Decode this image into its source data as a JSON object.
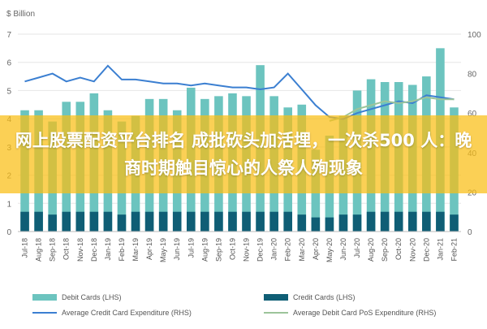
{
  "chart_data": {
    "type": "bar+line",
    "left_axis_unit": "$ Billion",
    "right_axis_ticks": [
      0,
      20,
      40,
      60,
      80,
      100
    ],
    "left_axis_ticks": [
      0,
      1,
      2,
      3,
      4,
      5,
      6,
      7
    ],
    "ylim_left": [
      0,
      7
    ],
    "ylim_right": [
      0,
      100
    ],
    "categories": [
      "Jul-18",
      "Aug-18",
      "Sep-18",
      "Oct-18",
      "Nov-18",
      "Dec-18",
      "Jan-19",
      "Feb-19",
      "Mar-19",
      "Apr-19",
      "May-19",
      "Jun-19",
      "Jul-19",
      "Aug-19",
      "Sep-19",
      "Oct-19",
      "Nov-19",
      "Dec-19",
      "Jan-20",
      "Feb-20",
      "Mar-20",
      "Apr-20",
      "May-20",
      "Jun-20",
      "Jul-20",
      "Aug-20",
      "Sep-20",
      "Oct-20",
      "Nov-20",
      "Dec-20",
      "Jan-21",
      "Feb-21"
    ],
    "series": [
      {
        "name": "Debit Cards (LHS)",
        "kind": "bar",
        "axis": "left",
        "color": "#6cc4bf",
        "values": [
          4.3,
          4.3,
          3.9,
          4.6,
          4.6,
          4.9,
          4.3,
          3.9,
          4.1,
          4.7,
          4.7,
          4.3,
          5.1,
          4.7,
          4.8,
          4.9,
          4.8,
          5.9,
          4.8,
          4.4,
          4.5,
          2.9,
          3.4,
          4.1,
          5.0,
          5.4,
          5.3,
          5.3,
          5.2,
          5.5,
          6.5,
          4.4
        ]
      },
      {
        "name": "Credit Cards (LHS)",
        "kind": "bar",
        "axis": "left",
        "color": "#0f5e75",
        "values": [
          0.7,
          0.7,
          0.6,
          0.7,
          0.7,
          0.7,
          0.7,
          0.6,
          0.7,
          0.7,
          0.7,
          0.7,
          0.7,
          0.7,
          0.7,
          0.7,
          0.7,
          0.7,
          0.7,
          0.7,
          0.6,
          0.5,
          0.5,
          0.6,
          0.6,
          0.7,
          0.7,
          0.7,
          0.7,
          0.7,
          0.7,
          0.6
        ]
      },
      {
        "name": "Average Credit Card Expenditure (RHS)",
        "kind": "line",
        "axis": "right",
        "color": "#3b7fd1",
        "values": [
          76,
          78,
          80,
          76,
          78,
          76,
          84,
          77,
          77,
          76,
          75,
          75,
          74,
          75,
          74,
          73,
          73,
          72,
          73,
          80,
          72,
          64,
          58,
          57,
          60,
          62,
          64,
          66,
          65,
          69,
          68,
          67
        ]
      },
      {
        "name": "Average Debit Card PoS Expenditure (RHS)",
        "kind": "line",
        "axis": "right",
        "color": "#9cc49a",
        "values": [
          null,
          null,
          null,
          null,
          null,
          null,
          null,
          null,
          null,
          null,
          null,
          null,
          null,
          null,
          null,
          null,
          null,
          null,
          null,
          null,
          null,
          null,
          56,
          58,
          62,
          64,
          66,
          65,
          66,
          68,
          67,
          67
        ]
      }
    ]
  },
  "overlay": {
    "headline": "网上股票配资平台排名 成批砍头加活埋，一次杀500 人：晚商时期触目惊心的人祭人殉现象"
  }
}
